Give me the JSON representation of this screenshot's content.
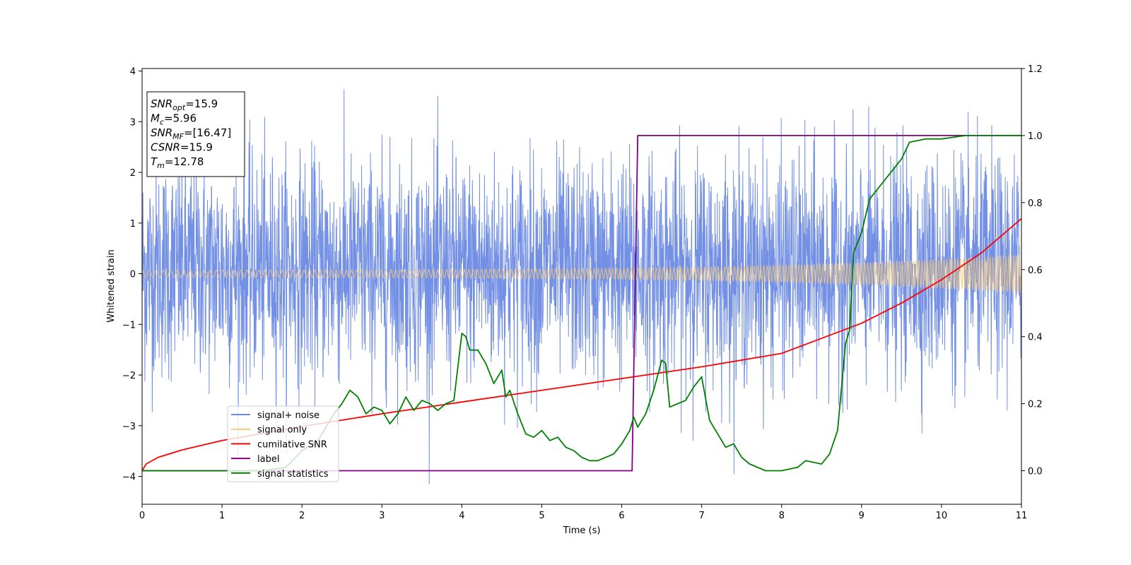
{
  "chart_data": {
    "type": "line",
    "xlabel": "Time (s)",
    "ylabel": "Whitened strain",
    "xlim": [
      0,
      11
    ],
    "ylim_left": [
      -4.55,
      4.05
    ],
    "ylim_right": [
      -0.1,
      1.2
    ],
    "x_ticks": [
      0,
      1,
      2,
      3,
      4,
      5,
      6,
      7,
      8,
      9,
      10,
      11
    ],
    "y_ticks_left": [
      -4,
      -3,
      -2,
      -1,
      0,
      1,
      2,
      3,
      4
    ],
    "y_ticks_right": [
      0.0,
      0.2,
      0.4,
      0.6,
      0.8,
      1.0,
      1.2
    ],
    "legend_position": "lower-left",
    "legend": [
      {
        "label": "signal+ noise",
        "color": "#6c8ae4"
      },
      {
        "label": "signal only",
        "color": "#f4c87a"
      },
      {
        "label": "cumilative SNR",
        "color": "#ff0000"
      },
      {
        "label": "label",
        "color": "#800080"
      },
      {
        "label": "signal statistics",
        "color": "#008000"
      }
    ],
    "info_box": {
      "position": "upper-left",
      "lines": [
        {
          "name": "SNR",
          "sub": "opt",
          "value": "=15.9"
        },
        {
          "name": "M",
          "sub": "c",
          "value": "=5.96"
        },
        {
          "name": "SNR",
          "sub": "MF",
          "value": "=[16.47]"
        },
        {
          "name": "CSNR",
          "sub": "",
          "value": "=15.9"
        },
        {
          "name": "T",
          "sub": "m",
          "value": "=12.78"
        }
      ]
    },
    "series": [
      {
        "name": "signal+ noise",
        "axis": "left",
        "color": "#6c8ae4",
        "kind": "noise",
        "typical_range": [
          -2.3,
          2.5
        ],
        "extreme_range": [
          -4.15,
          3.65
        ]
      },
      {
        "name": "signal only",
        "axis": "left",
        "color": "#f4c87a",
        "kind": "chirp",
        "envelope_t": [
          0,
          2,
          4,
          6,
          7,
          8,
          9,
          10,
          11
        ],
        "envelope_amp": [
          0.07,
          0.075,
          0.085,
          0.11,
          0.13,
          0.17,
          0.22,
          0.29,
          0.38
        ]
      },
      {
        "name": "cumilative SNR",
        "axis": "right",
        "color": "#ff0000",
        "x": [
          0,
          0.05,
          0.2,
          0.5,
          1,
          2,
          3,
          4,
          5,
          6,
          7,
          8,
          9,
          9.5,
          10,
          10.5,
          11
        ],
        "y": [
          0.0,
          0.02,
          0.04,
          0.062,
          0.09,
          0.132,
          0.17,
          0.205,
          0.24,
          0.275,
          0.31,
          0.35,
          0.44,
          0.5,
          0.57,
          0.65,
          0.752
        ]
      },
      {
        "name": "label",
        "axis": "right",
        "color": "#800080",
        "x": [
          0,
          6.13,
          6.2,
          11
        ],
        "y": [
          0.0,
          0.0,
          1.0,
          1.0
        ]
      },
      {
        "name": "signal statistics",
        "axis": "right",
        "color": "#008000",
        "x": [
          0,
          0.3,
          1,
          1.5,
          1.8,
          2.0,
          2.2,
          2.4,
          2.5,
          2.6,
          2.7,
          2.8,
          2.9,
          3.0,
          3.1,
          3.2,
          3.3,
          3.4,
          3.5,
          3.6,
          3.7,
          3.8,
          3.9,
          4.0,
          4.05,
          4.1,
          4.2,
          4.3,
          4.4,
          4.5,
          4.55,
          4.6,
          4.7,
          4.8,
          4.9,
          5.0,
          5.1,
          5.2,
          5.3,
          5.4,
          5.5,
          5.6,
          5.7,
          5.8,
          5.9,
          6.0,
          6.1,
          6.15,
          6.2,
          6.3,
          6.4,
          6.5,
          6.55,
          6.6,
          6.7,
          6.8,
          6.9,
          7.0,
          7.1,
          7.2,
          7.3,
          7.4,
          7.5,
          7.6,
          7.8,
          8.0,
          8.2,
          8.3,
          8.5,
          8.6,
          8.7,
          8.8,
          8.85,
          8.9,
          9.0,
          9.1,
          9.3,
          9.5,
          9.6,
          9.8,
          10.0,
          10.3,
          11.0
        ],
        "y": [
          0.0,
          0.0,
          0.0,
          0.0,
          0.01,
          0.06,
          0.09,
          0.17,
          0.2,
          0.24,
          0.22,
          0.17,
          0.19,
          0.18,
          0.14,
          0.17,
          0.22,
          0.18,
          0.21,
          0.2,
          0.18,
          0.2,
          0.21,
          0.41,
          0.4,
          0.36,
          0.36,
          0.32,
          0.26,
          0.3,
          0.22,
          0.24,
          0.17,
          0.11,
          0.1,
          0.12,
          0.09,
          0.1,
          0.07,
          0.06,
          0.04,
          0.03,
          0.03,
          0.04,
          0.05,
          0.08,
          0.12,
          0.16,
          0.13,
          0.17,
          0.24,
          0.33,
          0.32,
          0.19,
          0.2,
          0.21,
          0.25,
          0.28,
          0.15,
          0.11,
          0.07,
          0.08,
          0.04,
          0.02,
          0.0,
          0.0,
          0.01,
          0.03,
          0.02,
          0.05,
          0.12,
          0.38,
          0.42,
          0.65,
          0.71,
          0.81,
          0.87,
          0.93,
          0.98,
          0.99,
          0.99,
          1.0,
          1.0
        ]
      }
    ]
  }
}
